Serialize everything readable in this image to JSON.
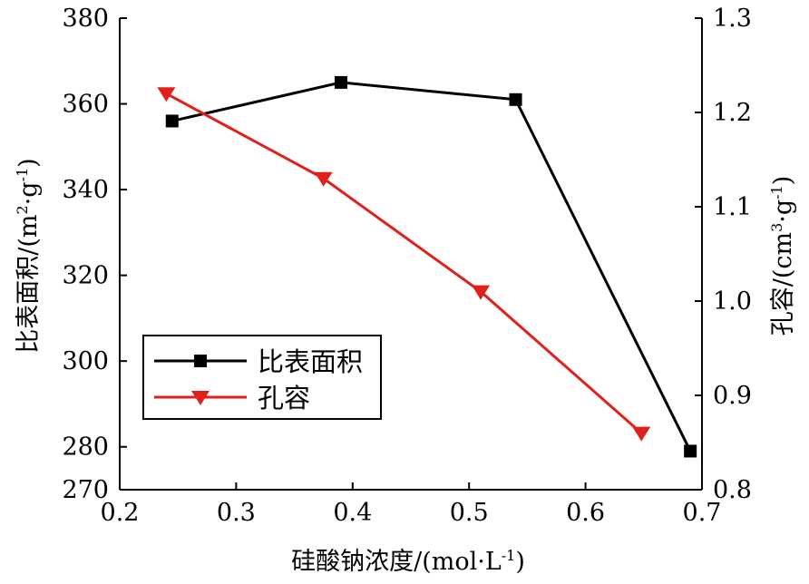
{
  "chart_data": {
    "type": "line",
    "xlabel": "硅酸钠浓度/(mol·L",
    "xlabel_sup": "-1",
    "xlabel_end": ")",
    "ylabel_left": "比表面积/(m",
    "ylabel_left_sup1": "2",
    "ylabel_left_mid": "·g",
    "ylabel_left_sup2": "-1",
    "ylabel_left_end": ")",
    "ylabel_right": "孔容/(cm",
    "ylabel_right_sup1": "3",
    "ylabel_right_mid": "·g",
    "ylabel_right_sup2": "-1",
    "ylabel_right_end": ")",
    "xlim": [
      0.2,
      0.7
    ],
    "ylim_left": [
      270,
      380
    ],
    "ylim_right": [
      0.8,
      1.3
    ],
    "x_ticks": [
      "0.2",
      "0.3",
      "0.4",
      "0.5",
      "0.6",
      "0.7"
    ],
    "y_left_ticks": [
      "270",
      "280",
      "300",
      "320",
      "340",
      "360",
      "380"
    ],
    "y_right_ticks": [
      "0.8",
      "0.9",
      "1.0",
      "1.1",
      "1.2",
      "1.3"
    ],
    "legend_position": "middle-left",
    "series": [
      {
        "name": "比表面积",
        "axis": "left",
        "color": "#000000",
        "marker": "square",
        "x": [
          0.245,
          0.39,
          0.54,
          0.69
        ],
        "y": [
          356,
          365,
          361,
          279
        ]
      },
      {
        "name": "孔容",
        "axis": "right",
        "color": "#e0201b",
        "marker": "triangle-down",
        "x": [
          0.24,
          0.375,
          0.51,
          0.648
        ],
        "y": [
          1.22,
          1.13,
          1.01,
          0.86
        ]
      }
    ]
  }
}
